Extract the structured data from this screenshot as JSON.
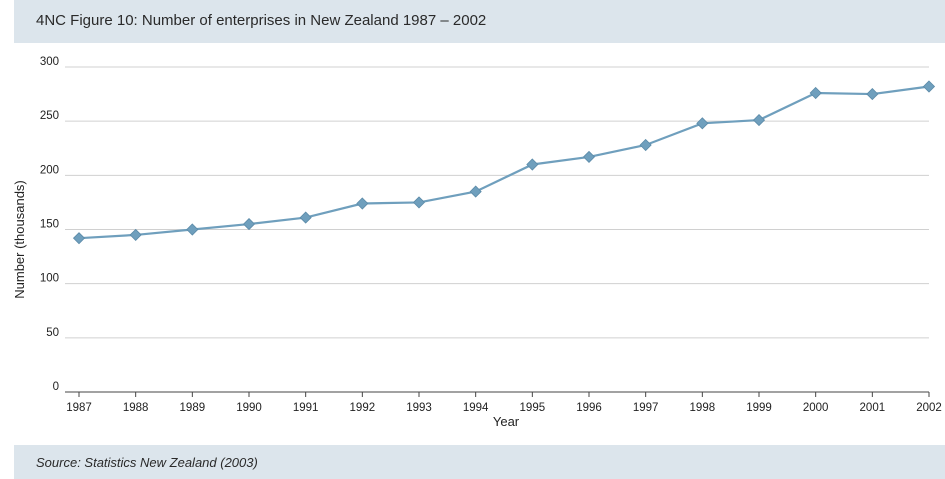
{
  "header": {
    "title": "4NC Figure 10: Number of enterprises in New Zealand 1987 – 2002"
  },
  "footer": {
    "source": "Source: Statistics New Zealand (2003)"
  },
  "colors": {
    "line": "#6f9fbd",
    "grid": "#d0d0d0",
    "band": "#dce5ec"
  },
  "chart_data": {
    "type": "line",
    "title": "4NC Figure 10: Number of enterprises in New Zealand 1987 – 2002",
    "xlabel": "Year",
    "ylabel": "Number (thousands)",
    "ylim": [
      0,
      300
    ],
    "yticks": [
      0,
      50,
      100,
      150,
      200,
      250,
      300
    ],
    "grid": true,
    "legend": "none",
    "categories": [
      "1987",
      "1988",
      "1989",
      "1990",
      "1991",
      "1992",
      "1993",
      "1994",
      "1995",
      "1996",
      "1997",
      "1998",
      "1999",
      "2000",
      "2001",
      "2002"
    ],
    "series": [
      {
        "values": [
          142,
          145,
          150,
          155,
          161,
          174,
          175,
          185,
          210,
          217,
          228,
          248,
          251,
          276,
          275,
          282
        ]
      }
    ]
  }
}
